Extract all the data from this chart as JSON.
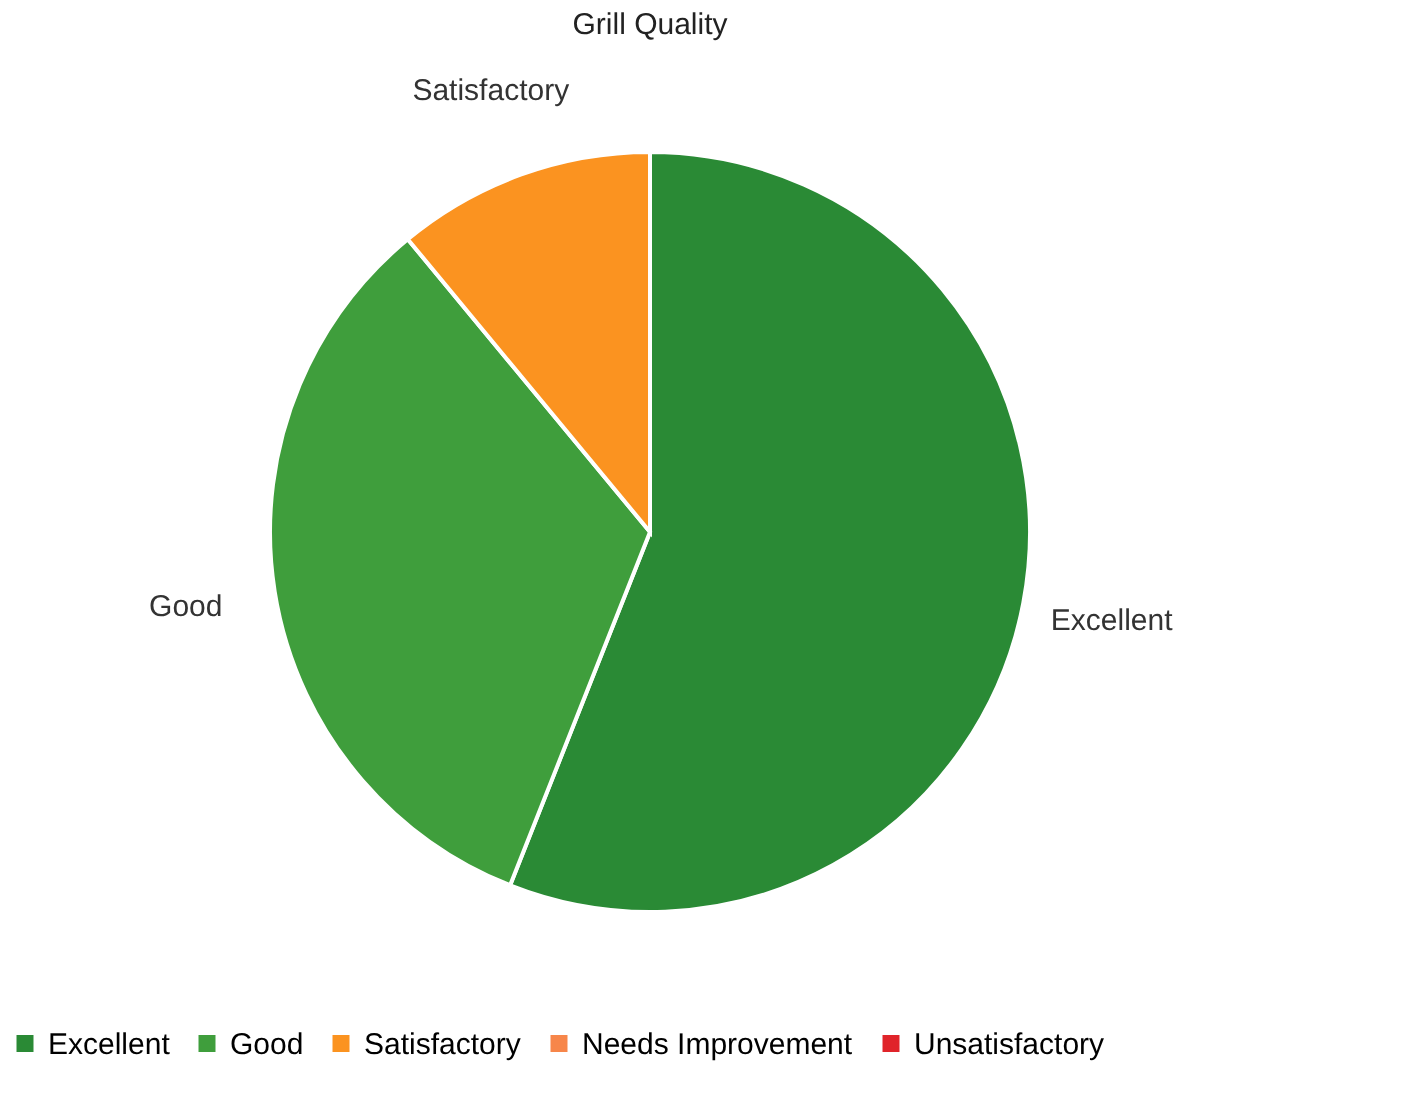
{
  "chart_data": {
    "type": "pie",
    "title": "Grill Quality",
    "categories": [
      "Excellent",
      "Good",
      "Satisfactory",
      "Needs Improvement",
      "Unsatisfactory"
    ],
    "values": [
      56,
      33,
      11,
      0,
      0
    ],
    "colors": [
      "#2a8a35",
      "#3f9e3c",
      "#fb9320",
      "#f7864a",
      "#e0242a"
    ],
    "legend": "bottom"
  }
}
